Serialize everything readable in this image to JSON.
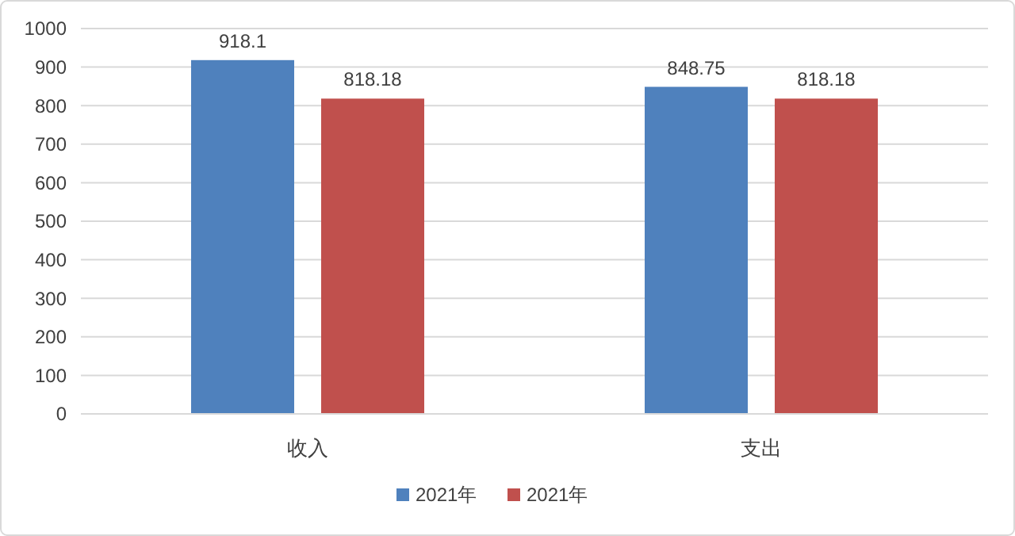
{
  "chart_data": {
    "type": "bar",
    "categories": [
      "收入",
      "支出"
    ],
    "series": [
      {
        "name": "2021年",
        "color": "#4f81bd",
        "values": [
          918.1,
          848.75
        ]
      },
      {
        "name": "2021年",
        "color": "#c0504d",
        "values": [
          818.18,
          818.18
        ]
      }
    ],
    "ylim": [
      0,
      1000
    ],
    "yticks": [
      0,
      100,
      200,
      300,
      400,
      500,
      600,
      700,
      800,
      900,
      1000
    ],
    "grid": "y",
    "legend": "bottom",
    "data_labels": true
  }
}
